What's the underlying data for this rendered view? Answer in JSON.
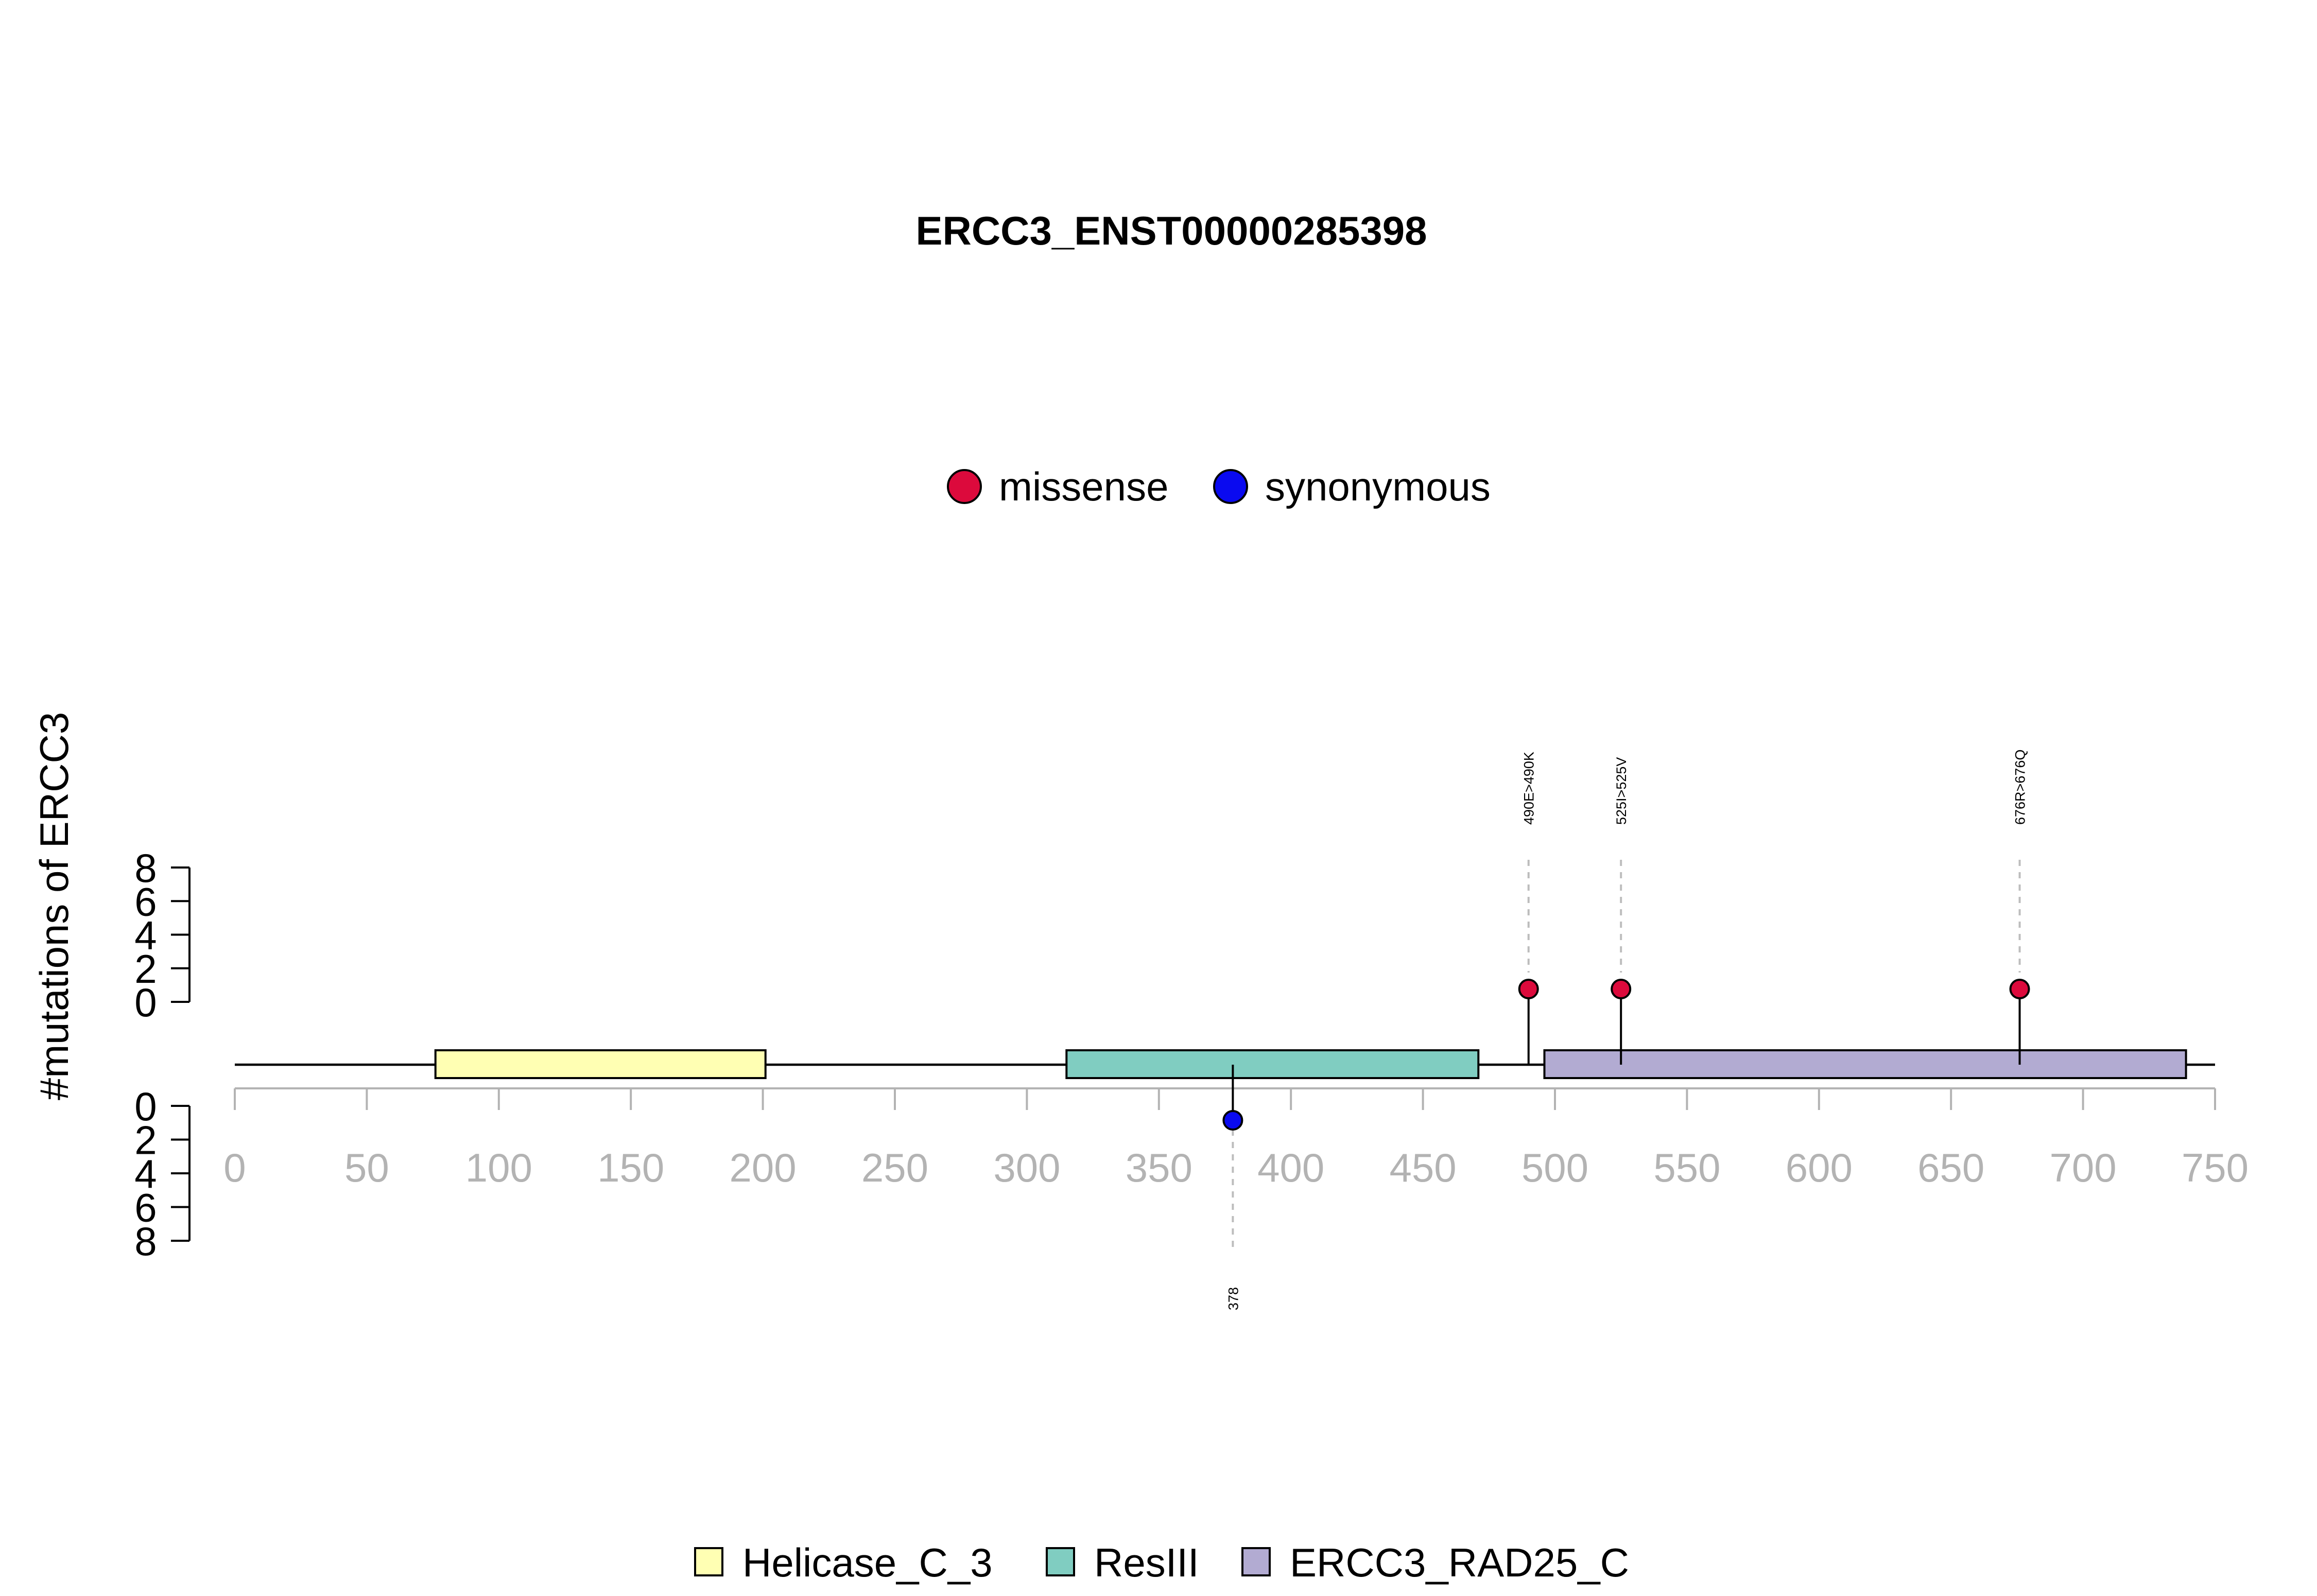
{
  "chart_data": {
    "type": "lollipop",
    "title": "ERCC3_ENST00000285398",
    "ylabel": "#mutations of ERCC3",
    "xlim": [
      0,
      750
    ],
    "x_ticks": [
      "0",
      "50",
      "100",
      "150",
      "200",
      "250",
      "300",
      "350",
      "400",
      "450",
      "500",
      "550",
      "600",
      "650",
      "700",
      "750"
    ],
    "x_tick_values": [
      0,
      50,
      100,
      150,
      200,
      250,
      300,
      350,
      400,
      450,
      500,
      550,
      600,
      650,
      700,
      750
    ],
    "upper_y_ticks": [
      "8",
      "6",
      "4",
      "2",
      "0"
    ],
    "upper_y_tick_values": [
      8,
      6,
      4,
      2,
      0
    ],
    "lower_y_ticks": [
      "0",
      "2",
      "4",
      "6",
      "8"
    ],
    "lower_y_tick_values": [
      0,
      2,
      4,
      6,
      8
    ],
    "ylim": [
      0,
      8
    ],
    "protein_length": 750,
    "domains": [
      {
        "name": "Helicase_C_3",
        "start": 76,
        "end": 201,
        "color": "#ffffb3"
      },
      {
        "name": "ResIII",
        "start": 315,
        "end": 471,
        "color": "#80cdc1"
      },
      {
        "name": "ERCC3_RAD25_C",
        "start": 496,
        "end": 739,
        "color": "#b2abd2"
      }
    ],
    "mutation_legend": [
      {
        "name": "missense",
        "color": "#dc0a3c"
      },
      {
        "name": "synonymous",
        "color": "#0a0af0"
      }
    ],
    "mutations": [
      {
        "position": 490,
        "count": 1,
        "type": "missense",
        "label": "490E>490K",
        "side": "top"
      },
      {
        "position": 525,
        "count": 1,
        "type": "missense",
        "label": "525I>525V",
        "side": "top"
      },
      {
        "position": 676,
        "count": 1,
        "type": "missense",
        "label": "676R>676Q",
        "side": "top"
      },
      {
        "position": 378,
        "count": 1,
        "type": "synonymous",
        "label": "378",
        "side": "bottom"
      }
    ]
  }
}
